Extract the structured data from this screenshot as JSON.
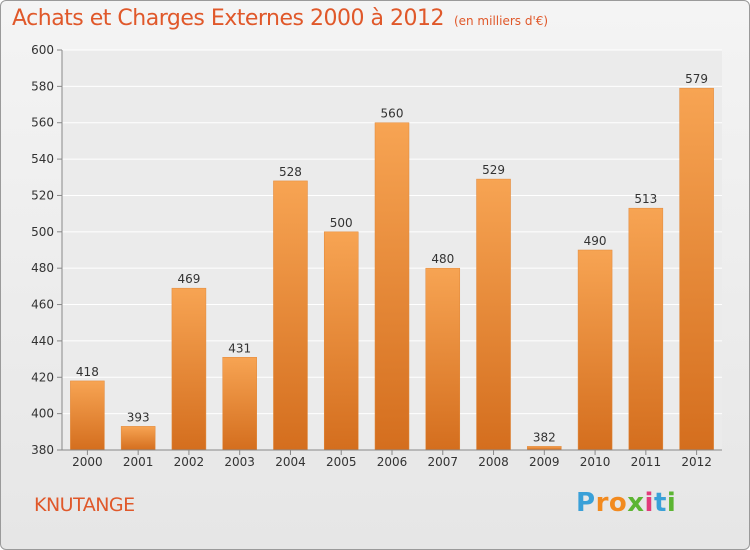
{
  "header": {
    "title": "Achats et Charges Externes 2000 à 2012",
    "subtitle": "(en milliers d'€)"
  },
  "footer": {
    "town": "KNUTANGE",
    "logo": "Proxiti"
  },
  "colors": {
    "accent": "#e0582a",
    "bar_top": "#f7a453",
    "bar_bottom": "#d46e1e"
  },
  "chart_data": {
    "type": "bar",
    "title": "Achats et Charges Externes 2000 à 2012",
    "subtitle": "(en milliers d'€)",
    "categories": [
      "2000",
      "2001",
      "2002",
      "2003",
      "2004",
      "2005",
      "2006",
      "2007",
      "2008",
      "2009",
      "2010",
      "2011",
      "2012"
    ],
    "values": [
      418,
      393,
      469,
      431,
      528,
      500,
      560,
      480,
      529,
      382,
      490,
      513,
      579
    ],
    "ylim": [
      380,
      600
    ],
    "yticks": [
      380,
      400,
      420,
      440,
      460,
      480,
      500,
      520,
      540,
      560,
      580,
      600
    ],
    "grid": true,
    "xlabel": "",
    "ylabel": ""
  }
}
